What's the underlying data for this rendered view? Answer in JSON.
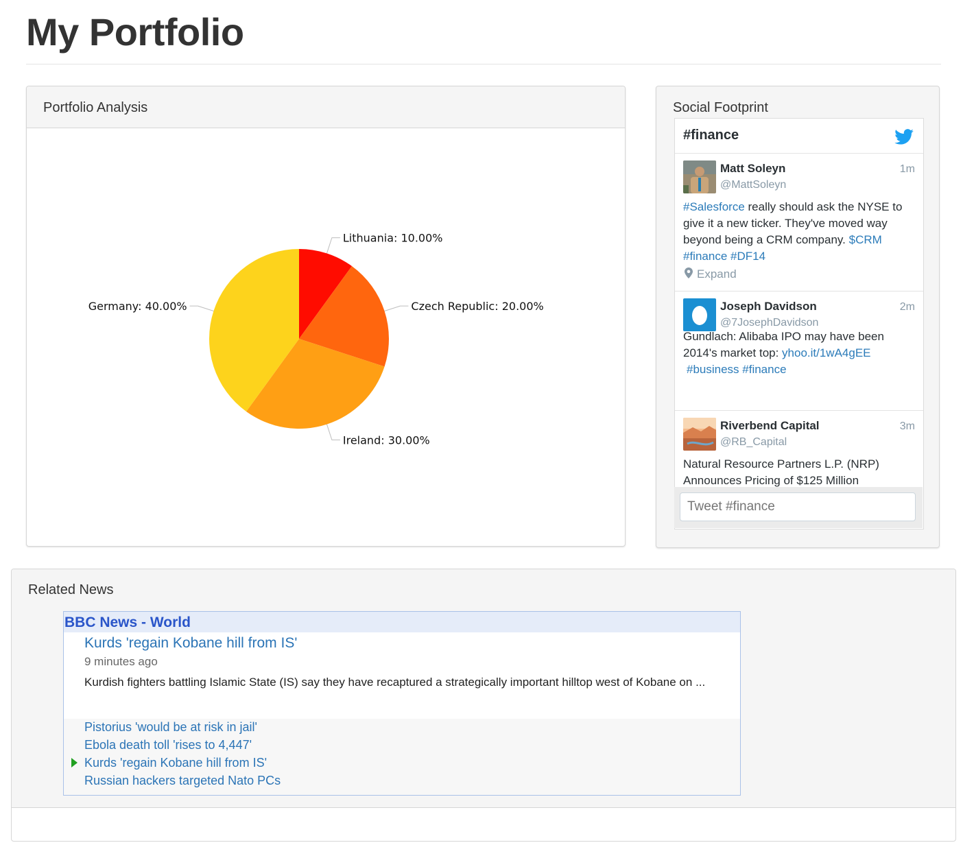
{
  "page": {
    "title": "My Portfolio"
  },
  "portfolio": {
    "heading": "Portfolio Analysis",
    "chart_data": {
      "type": "pie",
      "categories": [
        "Lithuania",
        "Czech Republic",
        "Ireland",
        "Germany"
      ],
      "values": [
        10,
        20,
        30,
        40
      ],
      "labels": [
        "Lithuania: 10.00%",
        "Czech Republic: 20.00%",
        "Ireland: 30.00%",
        "Germany: 40.00%"
      ],
      "colors": [
        "#ff0c00",
        "#ff660e",
        "#ff9f14",
        "#fdd31c"
      ],
      "legend": "none"
    }
  },
  "social": {
    "heading": "Social Footprint",
    "hashtag": "#finance",
    "icons": {
      "brand": "twitter-bird-icon",
      "expand": "map-pin-icon"
    },
    "tweets": [
      {
        "name": "Matt Soleyn",
        "handle": "@MattSoleyn",
        "time": "1m",
        "text_parts": [
          "#Salesforce",
          " really should ask the NYSE to give it a new ticker. They've moved way beyond being a CRM company. ",
          "$CRM #finance #DF14"
        ],
        "expand": "Expand"
      },
      {
        "name": "Joseph Davidson",
        "handle": "@7JosephDavidson",
        "time": "2m",
        "text_parts": [
          "Gundlach: Alibaba IPO may have been 2014's market top: ",
          "yhoo.it/1wA4gEE",
          "#business #finance"
        ]
      },
      {
        "name": "Riverbend Capital",
        "handle": "@RB_Capital",
        "time": "3m",
        "text_parts": [
          "Natural Resource Partners L.P. (NRP) Announces Pricing of $125 Million"
        ]
      }
    ],
    "input_placeholder": "Tweet #finance"
  },
  "news": {
    "heading": "Related News",
    "feed_title": "BBC News - World",
    "lead": {
      "title": "Kurds 'regain Kobane hill from IS'",
      "time": "9 minutes ago",
      "summary": "Kurdish fighters battling Islamic State (IS) say they have recaptured a strategically important hilltop west of Kobane on ..."
    },
    "items": [
      "Pistorius 'would be at risk in jail'",
      "Ebola death toll 'rises to 4,447'",
      "Kurds 'regain Kobane hill from IS'",
      "Russian hackers targeted Nato PCs"
    ],
    "selected_index": 2
  }
}
